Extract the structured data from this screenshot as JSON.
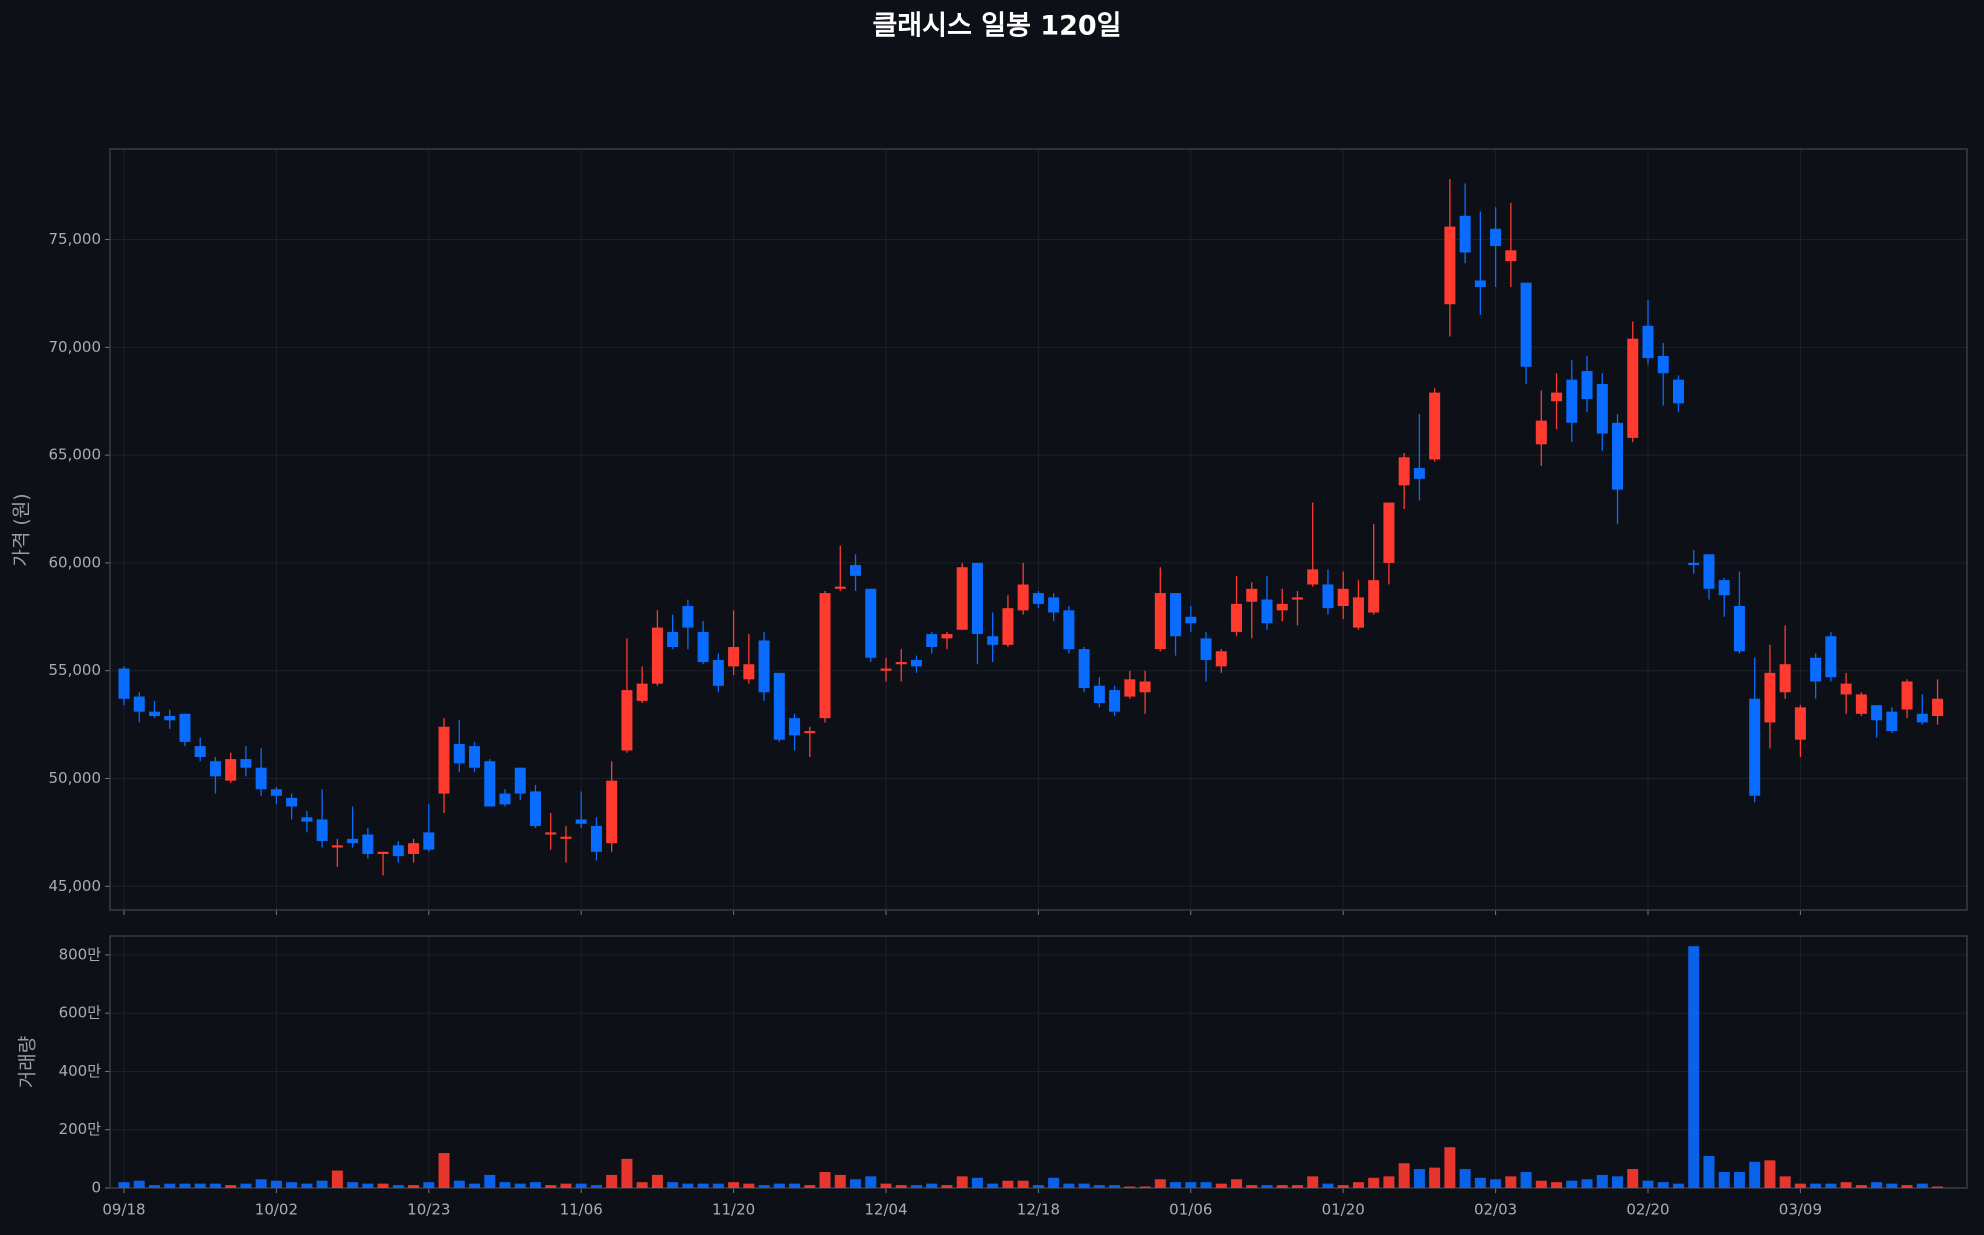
{
  "chart_data": [
    {
      "type": "candlestick",
      "title": "클래시스 일봉 120일",
      "ylabel": "가격 (원)",
      "up_color": "#ff3b30",
      "down_color": "#0a6cff",
      "grid": true,
      "ylim": [
        43900,
        79200
      ],
      "yticks": [
        {
          "value": 45000,
          "label": "45,000"
        },
        {
          "value": 50000,
          "label": "50,000"
        },
        {
          "value": 55000,
          "label": "55,000"
        },
        {
          "value": 60000,
          "label": "60,000"
        },
        {
          "value": 65000,
          "label": "65,000"
        },
        {
          "value": 70000,
          "label": "70,000"
        },
        {
          "value": 75000,
          "label": "75,000"
        }
      ],
      "open": [
        55100,
        53800,
        53100,
        52900,
        53000,
        51500,
        50800,
        49900,
        50900,
        50500,
        49500,
        49100,
        48200,
        48100,
        46800,
        47200,
        47400,
        46500,
        46900,
        46500,
        47500,
        49300,
        51600,
        51500,
        50800,
        49300,
        50500,
        49400,
        47400,
        47200,
        48100,
        47800,
        47000,
        51300,
        53600,
        54400,
        56800,
        58000,
        56800,
        55500,
        55200,
        54600,
        56400,
        54900,
        52800,
        52100,
        52800,
        58800,
        59900,
        58800,
        55000,
        55300,
        55500,
        56700,
        56500,
        56900,
        60000,
        56600,
        56200,
        57800,
        58600,
        58400,
        57800,
        56000,
        54300,
        54100,
        53800,
        54000,
        56000,
        58600,
        57500,
        56500,
        55200,
        56800,
        58200,
        58300,
        57800,
        58300,
        59000,
        59000,
        58000,
        57000,
        57700,
        60000,
        63600,
        64400,
        64800,
        72000,
        76100,
        73100,
        75500,
        74000,
        73000,
        65500,
        67500,
        68500,
        68900,
        68300,
        66500,
        65800,
        71000,
        69600,
        68500,
        60000,
        60400,
        59200,
        58000,
        53700,
        52600,
        54000,
        51800,
        55600,
        56600,
        53900,
        53000,
        53400,
        53100,
        53200,
        53000,
        52900
      ],
      "high": [
        55200,
        54000,
        53600,
        53200,
        53000,
        51900,
        51000,
        51200,
        51500,
        51400,
        49600,
        49300,
        48500,
        49500,
        47200,
        48700,
        47700,
        46600,
        47100,
        47200,
        48800,
        52800,
        52700,
        51700,
        50900,
        49500,
        50500,
        49700,
        48400,
        47800,
        49400,
        48200,
        50800,
        56500,
        55200,
        57800,
        57600,
        58300,
        57300,
        55800,
        57800,
        56700,
        56800,
        54900,
        53000,
        52400,
        58700,
        60800,
        60400,
        58800,
        55600,
        56000,
        55700,
        56800,
        56800,
        60000,
        60000,
        57700,
        58500,
        60000,
        58700,
        58600,
        58000,
        56100,
        54700,
        54300,
        55000,
        55000,
        59800,
        58600,
        58000,
        56800,
        56000,
        59400,
        59100,
        59400,
        58800,
        58700,
        62800,
        59700,
        59600,
        59200,
        61800,
        62800,
        65100,
        66900,
        68100,
        77800,
        77600,
        76300,
        76500,
        76700,
        73000,
        68000,
        68800,
        69400,
        69600,
        68800,
        66900,
        71200,
        72200,
        70200,
        68700,
        60600,
        60400,
        59300,
        59600,
        55600,
        56200,
        57100,
        53400,
        55800,
        56800,
        54900,
        54000,
        53400,
        53300,
        54600,
        53900,
        54600
      ],
      "low": [
        53400,
        52600,
        52800,
        52300,
        51500,
        50800,
        49300,
        49800,
        50100,
        49200,
        48800,
        48100,
        47500,
        46800,
        45900,
        46800,
        46300,
        45500,
        46100,
        46100,
        46600,
        48400,
        50300,
        50300,
        48700,
        48700,
        49000,
        47700,
        46700,
        46100,
        47700,
        46200,
        46600,
        51200,
        53500,
        54300,
        56000,
        56000,
        55300,
        54000,
        54800,
        54400,
        53600,
        51700,
        51300,
        51000,
        52600,
        58700,
        58700,
        55400,
        54500,
        54500,
        54900,
        55800,
        56000,
        56900,
        55300,
        55400,
        56100,
        57600,
        57900,
        57300,
        55800,
        54000,
        53300,
        52900,
        53700,
        53000,
        55900,
        55700,
        56800,
        54500,
        54900,
        56600,
        56500,
        56900,
        57300,
        57100,
        58900,
        57600,
        57400,
        56900,
        57600,
        59000,
        62500,
        62900,
        64700,
        70500,
        73900,
        71500,
        72800,
        72800,
        68300,
        64500,
        66200,
        65600,
        67000,
        65200,
        61800,
        65600,
        69200,
        67300,
        67000,
        59500,
        58300,
        57500,
        55800,
        48900,
        51400,
        53700,
        51000,
        53700,
        54500,
        53000,
        52900,
        51900,
        52100,
        52800,
        52500,
        52500
      ],
      "close": [
        53700,
        53100,
        52900,
        52700,
        51700,
        51000,
        50100,
        50900,
        50500,
        49500,
        49200,
        48700,
        48000,
        47100,
        46900,
        47000,
        46500,
        46600,
        46400,
        47000,
        46700,
        52400,
        50700,
        50500,
        48700,
        48800,
        49300,
        47800,
        47500,
        47300,
        47900,
        46600,
        49900,
        54100,
        54400,
        57000,
        56100,
        57000,
        55400,
        54300,
        56100,
        55300,
        54000,
        51800,
        52000,
        52200,
        58600,
        58900,
        59400,
        55600,
        55100,
        55400,
        55200,
        56100,
        56700,
        59800,
        56700,
        56200,
        57900,
        59000,
        58100,
        57700,
        56000,
        54200,
        53500,
        53100,
        54600,
        54500,
        58600,
        56600,
        57200,
        55500,
        55900,
        58100,
        58800,
        57200,
        58100,
        58400,
        59700,
        57900,
        58800,
        58400,
        59200,
        62800,
        64900,
        63900,
        67900,
        75600,
        74400,
        72800,
        74700,
        74500,
        69100,
        66600,
        67900,
        66500,
        67600,
        66000,
        63400,
        70400,
        69500,
        68800,
        67400,
        59900,
        58800,
        58500,
        55900,
        49200,
        54900,
        55300,
        53300,
        54500,
        54700,
        54400,
        53900,
        52700,
        52200,
        54500,
        52600,
        53700
      ]
    },
    {
      "type": "bar",
      "ylabel": "거래량",
      "grid": true,
      "categories": [
        "09/18",
        null,
        null,
        null,
        null,
        null,
        null,
        null,
        null,
        null,
        "10/02",
        null,
        null,
        null,
        null,
        null,
        null,
        null,
        null,
        null,
        "10/23",
        null,
        null,
        null,
        null,
        null,
        null,
        null,
        null,
        null,
        "11/06",
        null,
        null,
        null,
        null,
        null,
        null,
        null,
        null,
        null,
        "11/20",
        null,
        null,
        null,
        null,
        null,
        null,
        null,
        null,
        null,
        "12/04",
        null,
        null,
        null,
        null,
        null,
        null,
        null,
        null,
        null,
        "12/18",
        null,
        null,
        null,
        null,
        null,
        null,
        null,
        null,
        null,
        "01/06",
        null,
        null,
        null,
        null,
        null,
        null,
        null,
        null,
        null,
        "01/20",
        null,
        null,
        null,
        null,
        null,
        null,
        null,
        null,
        null,
        "02/03",
        null,
        null,
        null,
        null,
        null,
        null,
        null,
        null,
        null,
        "02/20",
        null,
        null,
        null,
        null,
        null,
        null,
        null,
        null,
        null,
        "03/09",
        null,
        null,
        null,
        null,
        null,
        null,
        null,
        null,
        null
      ],
      "ylim": [
        0,
        8650000
      ],
      "yticks": [
        0,
        {
          "value": 2000000,
          "label": "200만"
        },
        {
          "value": 4000000,
          "label": "400만"
        },
        {
          "value": 6000000,
          "label": "600만"
        },
        {
          "value": 8000000,
          "label": "800만"
        }
      ],
      "values": [
        200000,
        250000,
        100000,
        150000,
        150000,
        150000,
        150000,
        100000,
        150000,
        300000,
        250000,
        200000,
        150000,
        250000,
        600000,
        200000,
        150000,
        150000,
        100000,
        100000,
        200000,
        1200000,
        250000,
        150000,
        450000,
        200000,
        150000,
        200000,
        100000,
        150000,
        150000,
        100000,
        450000,
        1000000,
        200000,
        450000,
        200000,
        150000,
        150000,
        150000,
        200000,
        150000,
        100000,
        150000,
        150000,
        100000,
        550000,
        450000,
        300000,
        400000,
        150000,
        100000,
        100000,
        150000,
        100000,
        400000,
        350000,
        150000,
        250000,
        250000,
        100000,
        350000,
        150000,
        150000,
        100000,
        100000,
        50000,
        50000,
        300000,
        200000,
        200000,
        200000,
        150000,
        300000,
        100000,
        100000,
        100000,
        100000,
        400000,
        150000,
        100000,
        200000,
        350000,
        400000,
        850000,
        650000,
        700000,
        1400000,
        650000,
        350000,
        300000,
        400000,
        550000,
        250000,
        200000,
        250000,
        300000,
        450000,
        400000,
        650000,
        250000,
        200000,
        150000,
        8300000,
        1100000,
        550000,
        550000,
        900000,
        950000,
        400000,
        150000,
        150000,
        150000,
        200000,
        100000,
        200000,
        150000,
        100000,
        150000,
        50000
      ]
    }
  ]
}
